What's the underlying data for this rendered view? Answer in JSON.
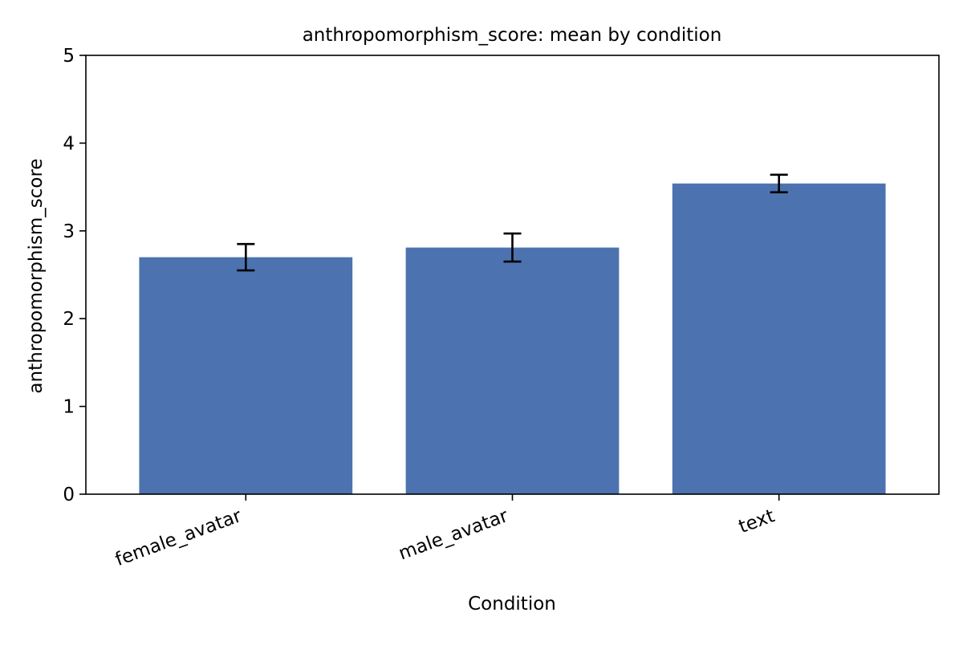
{
  "chart_data": {
    "type": "bar",
    "title": "anthropomorphism_score: mean by condition",
    "xlabel": "Condition",
    "ylabel": "anthropomorphism_score",
    "categories": [
      "female_avatar",
      "male_avatar",
      "text"
    ],
    "values": [
      2.7,
      2.81,
      3.54
    ],
    "error": [
      0.15,
      0.16,
      0.1
    ],
    "ylim": [
      0,
      5
    ],
    "yticks": [
      0,
      1,
      2,
      3,
      4,
      5
    ],
    "grid": false,
    "legend": "none",
    "bar_color": "#4c72b0",
    "error_color": "#000000"
  }
}
